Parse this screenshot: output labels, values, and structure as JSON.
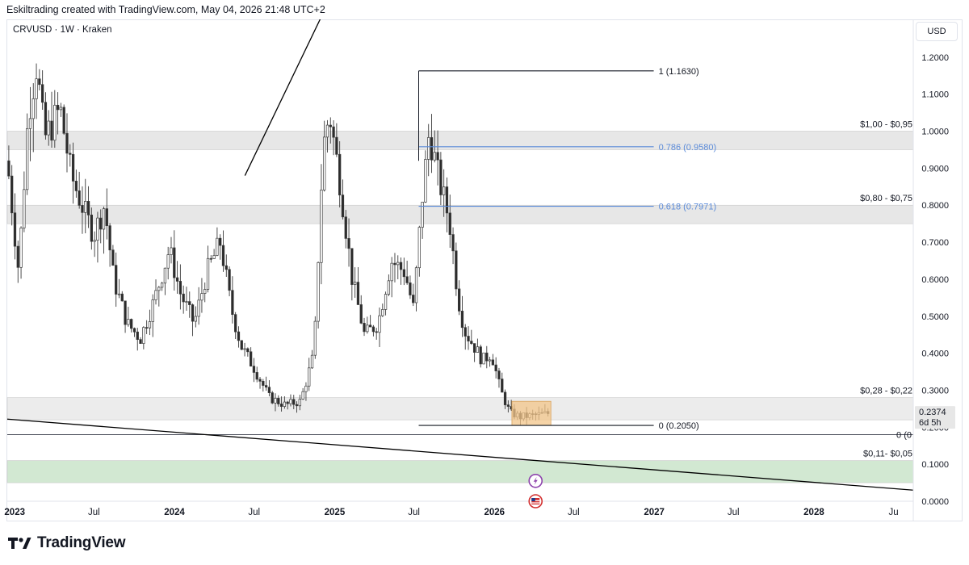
{
  "header": {
    "attribution": "Eskiltrading created with TradingView.com, May 04, 2026 21:48 UTC+2"
  },
  "chart": {
    "symbol_label": "CRVUSD · 1W · Kraken",
    "currency_button": "USD",
    "current_price": "0.2374",
    "countdown": "6d 5h"
  },
  "footer": {
    "logo_text": "TradingView"
  },
  "chart_data": {
    "type": "candlestick",
    "symbol": "CRVUSD",
    "interval": "1W",
    "exchange": "Kraken",
    "currency": "USD",
    "y_range": [
      -0.0,
      1.3
    ],
    "x_range": [
      "2022-12-15",
      "2028-08-15"
    ],
    "y_ticks": [
      0.0,
      0.1,
      0.2,
      0.3,
      0.4,
      0.5,
      0.6,
      0.7,
      0.8,
      0.9,
      1.0,
      1.1,
      1.2
    ],
    "y_tick_labels": [
      "0.0000",
      "0.1000",
      "0.2000",
      "0.3000",
      "0.4000",
      "0.5000",
      "0.6000",
      "0.7000",
      "0.8000",
      "0.9000",
      "1.0000",
      "1.1000",
      "1.2000"
    ],
    "x_ticks": [
      {
        "date": "2023-01-01",
        "label": "2023",
        "bold": true
      },
      {
        "date": "2023-07-01",
        "label": "Jul",
        "bold": false
      },
      {
        "date": "2024-01-01",
        "label": "2024",
        "bold": true
      },
      {
        "date": "2024-07-01",
        "label": "Jul",
        "bold": false
      },
      {
        "date": "2025-01-01",
        "label": "2025",
        "bold": true
      },
      {
        "date": "2025-07-01",
        "label": "Jul",
        "bold": false
      },
      {
        "date": "2026-01-01",
        "label": "2026",
        "bold": true
      },
      {
        "date": "2026-07-01",
        "label": "Jul",
        "bold": false
      },
      {
        "date": "2027-01-01",
        "label": "2027",
        "bold": true
      },
      {
        "date": "2027-07-01",
        "label": "Jul",
        "bold": false
      },
      {
        "date": "2028-01-01",
        "label": "2028",
        "bold": true
      },
      {
        "date": "2028-07-01",
        "label": "Ju",
        "bold": false
      }
    ],
    "path_points": [
      [
        "2022-12-15",
        0.92
      ],
      [
        "2023-01-10",
        0.62
      ],
      [
        "2023-02-01",
        1.05
      ],
      [
        "2023-02-20",
        1.18
      ],
      [
        "2023-03-10",
        0.98
      ],
      [
        "2023-04-15",
        1.06
      ],
      [
        "2023-05-10",
        0.88
      ],
      [
        "2023-06-10",
        0.78
      ],
      [
        "2023-07-01",
        0.72
      ],
      [
        "2023-07-25",
        0.8
      ],
      [
        "2023-08-15",
        0.6
      ],
      [
        "2023-09-15",
        0.48
      ],
      [
        "2023-10-15",
        0.44
      ],
      [
        "2023-11-15",
        0.54
      ],
      [
        "2023-12-20",
        0.68
      ],
      [
        "2024-01-15",
        0.56
      ],
      [
        "2024-02-15",
        0.48
      ],
      [
        "2024-03-15",
        0.62
      ],
      [
        "2024-04-15",
        0.7
      ],
      [
        "2024-05-10",
        0.52
      ],
      [
        "2024-06-01",
        0.42
      ],
      [
        "2024-07-01",
        0.36
      ],
      [
        "2024-08-05",
        0.28
      ],
      [
        "2024-09-10",
        0.26
      ],
      [
        "2024-10-15",
        0.27
      ],
      [
        "2024-11-15",
        0.4
      ],
      [
        "2024-12-05",
        0.95
      ],
      [
        "2024-12-20",
        1.05
      ],
      [
        "2025-01-15",
        0.85
      ],
      [
        "2025-02-10",
        0.6
      ],
      [
        "2025-03-10",
        0.45
      ],
      [
        "2025-04-10",
        0.48
      ],
      [
        "2025-05-10",
        0.65
      ],
      [
        "2025-06-10",
        0.62
      ],
      [
        "2025-06-30",
        0.52
      ],
      [
        "2025-07-20",
        0.82
      ],
      [
        "2025-08-05",
        1.0
      ],
      [
        "2025-08-25",
        0.88
      ],
      [
        "2025-09-20",
        0.76
      ],
      [
        "2025-10-10",
        0.55
      ],
      [
        "2025-10-25",
        0.46
      ],
      [
        "2025-11-15",
        0.42
      ],
      [
        "2025-12-05",
        0.38
      ],
      [
        "2025-12-25",
        0.4
      ],
      [
        "2026-01-15",
        0.3
      ],
      [
        "2026-02-05",
        0.24
      ],
      [
        "2026-03-01",
        0.228
      ],
      [
        "2026-04-01",
        0.232
      ],
      [
        "2026-05-04",
        0.2374
      ]
    ],
    "annotations": {
      "fib_levels": [
        {
          "ratio_label": "1 (1.1630)",
          "price": 1.163,
          "color": "#131722",
          "start": "2025-07-12",
          "end": "2026-12-31"
        },
        {
          "ratio_label": "0.786 (0.9580)",
          "price": 0.958,
          "color": "#5b8bd9",
          "start": "2025-07-12",
          "end": "2026-12-31"
        },
        {
          "ratio_label": "0.618 (0.7971)",
          "price": 0.7971,
          "color": "#5b8bd9",
          "start": "2025-07-12",
          "end": "2026-12-31"
        },
        {
          "ratio_label": "0 (0.2050)",
          "price": 0.205,
          "color": "#131722",
          "start": "2025-07-12",
          "end": "2026-12-31"
        }
      ],
      "zones": [
        {
          "label": "$1,00 - $0,95",
          "top": 1.0,
          "bottom": 0.95,
          "color": "#e7e7e7"
        },
        {
          "label": "$0,80 - $0,75",
          "top": 0.8,
          "bottom": 0.75,
          "color": "#e7e7e7"
        },
        {
          "label": "$0,28 - $0,22",
          "top": 0.28,
          "bottom": 0.22,
          "color": "#ececec"
        },
        {
          "label": "$0,11- $0,05",
          "top": 0.11,
          "bottom": 0.05,
          "color": "#d2e8d2"
        }
      ],
      "horizontal_line_label": "0 (0",
      "horizontal_line_price": 0.18,
      "trendline_down": {
        "start": [
          "2022-12-15",
          0.222
        ],
        "end": [
          "2028-08-15",
          0.03
        ]
      },
      "trendline_up": {
        "start": [
          "2024-06-10",
          0.88
        ],
        "end": [
          "2024-12-10",
          1.33
        ]
      },
      "highlight_box": {
        "start": "2026-02-10",
        "end": "2026-05-10",
        "top": 0.27,
        "bottom": 0.205,
        "color": "#f3c58a"
      }
    }
  }
}
